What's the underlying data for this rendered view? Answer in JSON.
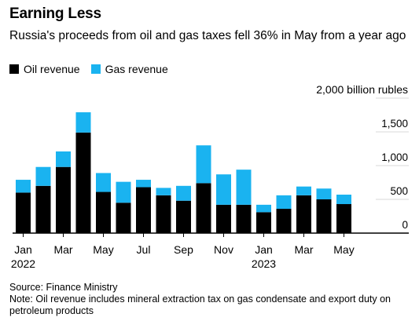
{
  "header": {
    "title": "Earning Less",
    "subtitle": "Russia's proceeds from oil and gas taxes fell 36% in May from a year ago"
  },
  "legend": [
    {
      "label": "Oil revenue",
      "color": "#000000"
    },
    {
      "label": "Gas revenue",
      "color": "#1ab3f0"
    }
  ],
  "footer": {
    "source": "Source: Finance Ministry",
    "note": "Note: Oil revenue includes mineral extraction tax on gas condensate and export duty on petroleum products"
  },
  "chart_data": {
    "type": "bar",
    "stacked": true,
    "categories": [
      "Jan 2022",
      "Feb 2022",
      "Mar 2022",
      "Apr 2022",
      "May 2022",
      "Jun 2022",
      "Jul 2022",
      "Aug 2022",
      "Sep 2022",
      "Oct 2022",
      "Nov 2022",
      "Dec 2022",
      "Jan 2023",
      "Feb 2023",
      "Mar 2023",
      "Apr 2023",
      "May 2023"
    ],
    "series": [
      {
        "name": "Oil revenue",
        "color": "#000000",
        "values": [
          600,
          700,
          980,
          1490,
          610,
          450,
          680,
          560,
          480,
          740,
          420,
          420,
          310,
          360,
          560,
          500,
          430
        ]
      },
      {
        "name": "Gas revenue",
        "color": "#1ab3f0",
        "values": [
          190,
          280,
          230,
          300,
          280,
          310,
          110,
          110,
          220,
          560,
          450,
          520,
          110,
          200,
          130,
          160,
          140
        ]
      }
    ],
    "x_tick_labels": [
      {
        "index": 0,
        "label": "Jan",
        "year": "2022"
      },
      {
        "index": 2,
        "label": "Mar"
      },
      {
        "index": 4,
        "label": "May"
      },
      {
        "index": 6,
        "label": "Jul"
      },
      {
        "index": 8,
        "label": "Sep"
      },
      {
        "index": 10,
        "label": "Nov"
      },
      {
        "index": 12,
        "label": "Jan",
        "year": "2023"
      },
      {
        "index": 14,
        "label": "Mar"
      },
      {
        "index": 16,
        "label": "May"
      }
    ],
    "y_ticks": [
      {
        "value": 0,
        "label": "0"
      },
      {
        "value": 500,
        "label": "500"
      },
      {
        "value": 1000,
        "label": "1,000"
      },
      {
        "value": 1500,
        "label": "1,500"
      },
      {
        "value": 2000,
        "label": "2,000 billion rubles"
      }
    ],
    "ylim": [
      0,
      2000
    ],
    "grid": true,
    "y_axis_position": "right"
  }
}
